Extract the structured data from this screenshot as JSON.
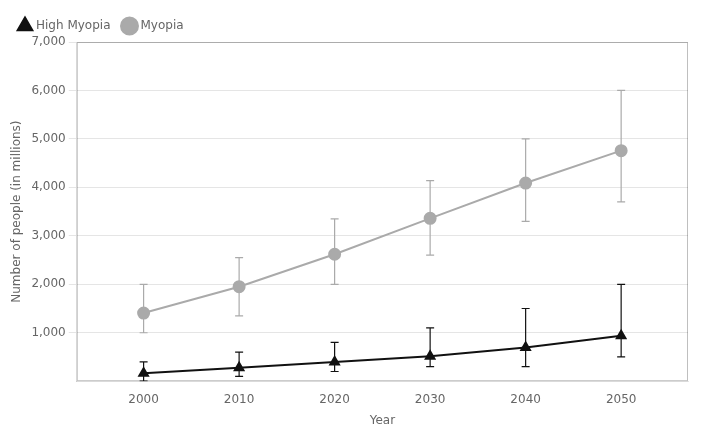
{
  "chart_data": {
    "type": "line",
    "xlabel": "Year",
    "ylabel": "Number of people (in millions)",
    "x": [
      2000,
      2010,
      2020,
      2030,
      2040,
      2050
    ],
    "series": [
      {
        "name": "Myopia",
        "color": "#aaaaaa",
        "marker": "circle",
        "line_style": "solid",
        "values": [
          1406,
          1950,
          2620,
          3361,
          4089,
          4758
        ],
        "error_low": [
          406,
          600,
          620,
          761,
          789,
          1058
        ],
        "error_high": [
          594,
          600,
          730,
          779,
          911,
          1242
        ]
      },
      {
        "name": "High Myopia",
        "color": "#111111",
        "marker": "triangle",
        "line_style": "solid",
        "values": [
          163,
          277,
          397,
          517,
          696,
          938
        ],
        "error_low": [
          163,
          177,
          197,
          217,
          396,
          438
        ],
        "error_high": [
          237,
          323,
          403,
          583,
          804,
          1062
        ]
      }
    ],
    "xlim": [
      1993,
      2057
    ],
    "xticks": [
      2000,
      2010,
      2020,
      2030,
      2040,
      2050
    ],
    "ylim": [
      0,
      7000
    ],
    "yticks": [
      {
        "value": 1000,
        "label": "1,000"
      },
      {
        "value": 2000,
        "label": "2,000"
      },
      {
        "value": 3000,
        "label": "3,000"
      },
      {
        "value": 4000,
        "label": "4,000"
      },
      {
        "value": 5000,
        "label": "5,000"
      },
      {
        "value": 6000,
        "label": "6,000"
      },
      {
        "value": 7000,
        "label": "7,000"
      }
    ],
    "grid": "y",
    "legend": "upper left"
  }
}
